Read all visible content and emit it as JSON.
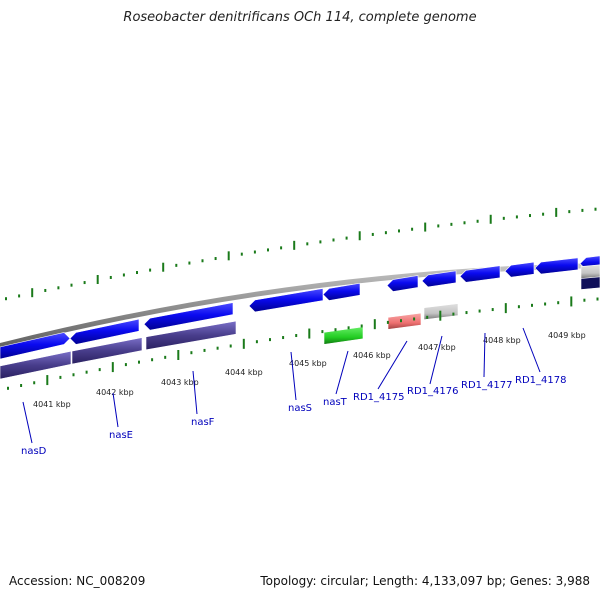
{
  "title": "Roseobacter denitrificans OCh 114, complete genome",
  "footer": {
    "accession": "Accession: NC_008209",
    "topology": "Topology: circular; Length: 4,133,097 bp; Genes: 3,988"
  },
  "colors": {
    "cds_forward": "#0a0af0",
    "cds_reverse": "#483d8b",
    "rna_green": "#2ecc2e",
    "pseudo_red": "#f08080",
    "gray_feature": "#c8c8c8",
    "tick": "#1a7a1a",
    "backbone": "#8a8a8a",
    "label": "#0000bb"
  },
  "ticks": [
    "4041 kbp",
    "4042 kbp",
    "4043 kbp",
    "4044 kbp",
    "4045 kbp",
    "4046 kbp",
    "4047 kbp",
    "4048 kbp",
    "4049 kbp"
  ],
  "genes": [
    {
      "name": "nasD"
    },
    {
      "name": "nasE"
    },
    {
      "name": "nasF"
    },
    {
      "name": "nasS"
    },
    {
      "name": "nasT"
    },
    {
      "name": "RD1_4175"
    },
    {
      "name": "RD1_4176"
    },
    {
      "name": "RD1_4177"
    },
    {
      "name": "RD1_4178"
    }
  ]
}
